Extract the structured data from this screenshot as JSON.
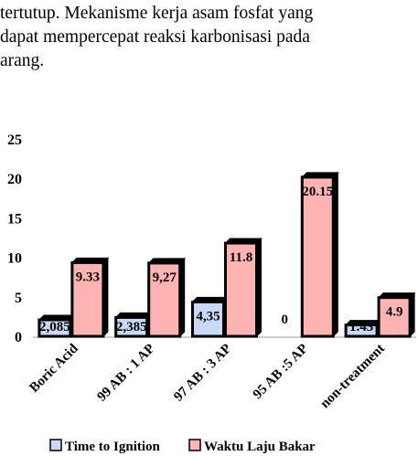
{
  "paragraph": {
    "text": "tertutup. Mekanisme kerja asam fosfat yang\ndapat mempercepat reaksi karbonisasi pada\narang."
  },
  "colors": {
    "series1_fill": "#c7d9f5",
    "series2_fill": "#ffb3b3",
    "bar_outline": "#000000",
    "axis": "#bfbfbf"
  },
  "chart_data": {
    "type": "bar",
    "categories": [
      "Boric Acid",
      "99 AB : 1 AP",
      "97 AB : 3 AP",
      "95 AB :5 AP",
      "non-treatment"
    ],
    "ylim": [
      0,
      25
    ],
    "yticks": [
      "0",
      "5",
      "10",
      "15",
      "20",
      "25"
    ],
    "grid": false,
    "legend_position": "bottom",
    "series": [
      {
        "name": "Time to Ignition",
        "values": [
          2.085,
          2.385,
          4.35,
          0,
          1.43
        ],
        "labels": [
          "2,085",
          "2,385",
          "4,35",
          "0",
          "1.43"
        ]
      },
      {
        "name": "Waktu Laju Bakar",
        "values": [
          9.33,
          9.27,
          11.8,
          20.15,
          4.9
        ],
        "labels": [
          "9.33",
          "9,27",
          "11.8",
          "20.15",
          "4.9"
        ]
      }
    ]
  }
}
